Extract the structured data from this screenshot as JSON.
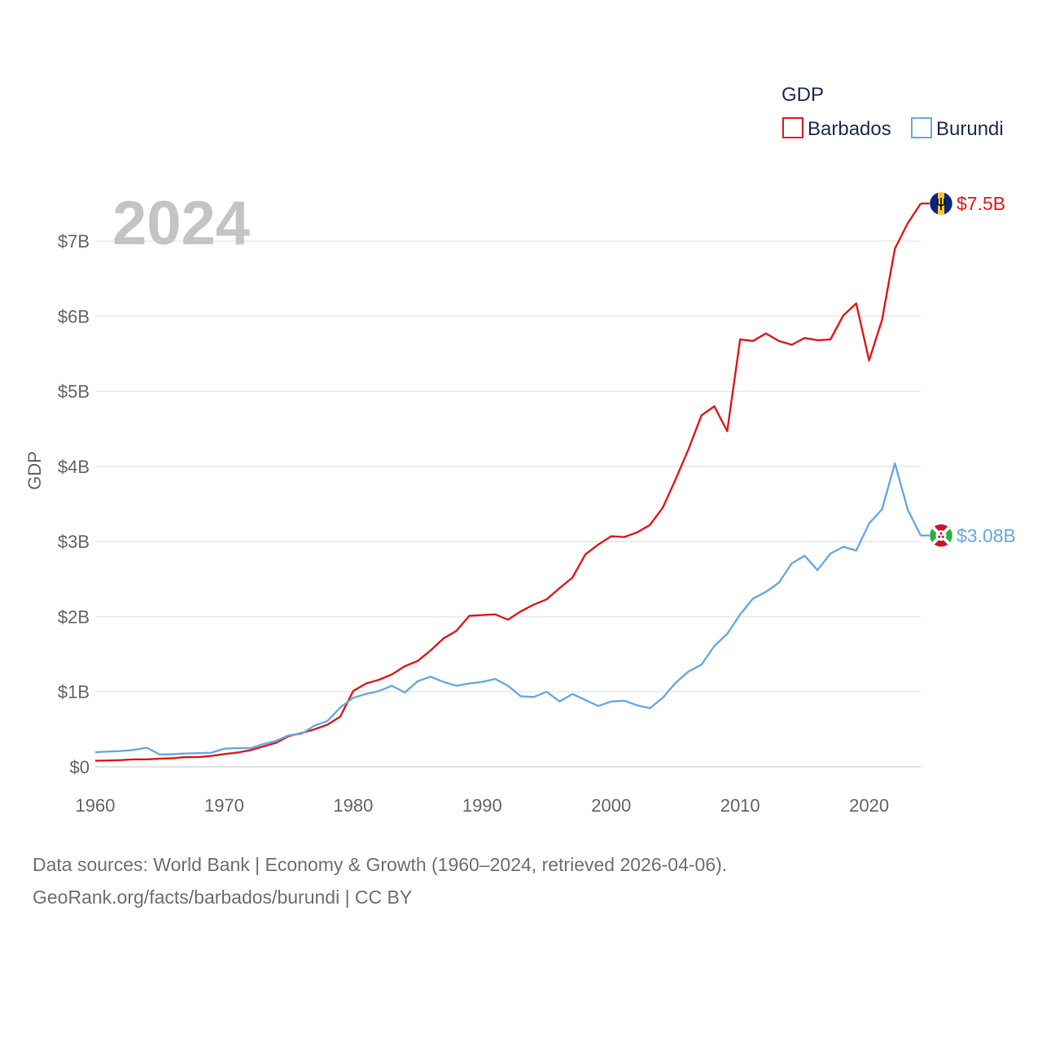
{
  "chart_data": {
    "type": "line",
    "title": "GDP",
    "ylabel": "GDP",
    "xlabel": "",
    "year_label": "2024",
    "xlim": [
      1960,
      2024
    ],
    "ylim": [
      0,
      7500000000
    ],
    "x_ticks": [
      1960,
      1970,
      1980,
      1990,
      2000,
      2010,
      2020
    ],
    "y_ticks": [
      {
        "value": 0,
        "label": "$0"
      },
      {
        "value": 1000000000,
        "label": "$1B"
      },
      {
        "value": 2000000000,
        "label": "$2B"
      },
      {
        "value": 3000000000,
        "label": "$3B"
      },
      {
        "value": 4000000000,
        "label": "$4B"
      },
      {
        "value": 5000000000,
        "label": "$5B"
      },
      {
        "value": 6000000000,
        "label": "$6B"
      },
      {
        "value": 7000000000,
        "label": "$7B"
      }
    ],
    "legend": {
      "title": "GDP",
      "placement": "top-right"
    },
    "x": [
      1960,
      1961,
      1962,
      1963,
      1964,
      1965,
      1966,
      1967,
      1968,
      1969,
      1970,
      1971,
      1972,
      1973,
      1974,
      1975,
      1976,
      1977,
      1978,
      1979,
      1980,
      1981,
      1982,
      1983,
      1984,
      1985,
      1986,
      1987,
      1988,
      1989,
      1990,
      1991,
      1992,
      1993,
      1994,
      1995,
      1996,
      1997,
      1998,
      1999,
      2000,
      2001,
      2002,
      2003,
      2004,
      2005,
      2006,
      2007,
      2008,
      2009,
      2010,
      2011,
      2012,
      2013,
      2014,
      2015,
      2016,
      2017,
      2018,
      2019,
      2020,
      2021,
      2022,
      2023,
      2024
    ],
    "series": [
      {
        "name": "Barbados",
        "color": "#e41a1c",
        "end_label": "$7.5B",
        "flag": "barbados-flag",
        "values": [
          0.08,
          0.085,
          0.09,
          0.1,
          0.1,
          0.11,
          0.115,
          0.13,
          0.13,
          0.145,
          0.17,
          0.19,
          0.22,
          0.27,
          0.32,
          0.41,
          0.45,
          0.5,
          0.56,
          0.67,
          1.01,
          1.11,
          1.16,
          1.23,
          1.34,
          1.41,
          1.55,
          1.71,
          1.81,
          2.01,
          2.02,
          2.03,
          1.96,
          2.07,
          2.16,
          2.23,
          2.38,
          2.52,
          2.83,
          2.96,
          3.07,
          3.06,
          3.12,
          3.22,
          3.45,
          3.83,
          4.23,
          4.68,
          4.8,
          4.47,
          5.69,
          5.67,
          5.77,
          5.67,
          5.62,
          5.71,
          5.68,
          5.69,
          6.01,
          6.17,
          5.41,
          5.95,
          6.9,
          7.24,
          7.5
        ]
      },
      {
        "name": "Burundi",
        "color": "#6aa9e6",
        "end_label": "$3.08B",
        "flag": "burundi-flag",
        "values": [
          0.196,
          0.203,
          0.21,
          0.225,
          0.255,
          0.165,
          0.168,
          0.178,
          0.182,
          0.188,
          0.242,
          0.25,
          0.248,
          0.3,
          0.345,
          0.42,
          0.44,
          0.55,
          0.61,
          0.79,
          0.92,
          0.97,
          1.01,
          1.08,
          0.99,
          1.14,
          1.2,
          1.13,
          1.08,
          1.11,
          1.13,
          1.17,
          1.08,
          0.94,
          0.93,
          1.0,
          0.87,
          0.97,
          0.89,
          0.81,
          0.87,
          0.88,
          0.82,
          0.78,
          0.92,
          1.12,
          1.27,
          1.36,
          1.61,
          1.77,
          2.03,
          2.24,
          2.33,
          2.45,
          2.71,
          2.81,
          2.62,
          2.84,
          2.93,
          2.88,
          3.24,
          3.43,
          4.04,
          3.42,
          3.08
        ]
      }
    ]
  },
  "source": {
    "line1": "Data sources: World Bank | Economy & Growth (1960–2024, retrieved 2026-04-06).",
    "line2": "GeoRank.org/facts/barbados/burundi | CC BY"
  }
}
